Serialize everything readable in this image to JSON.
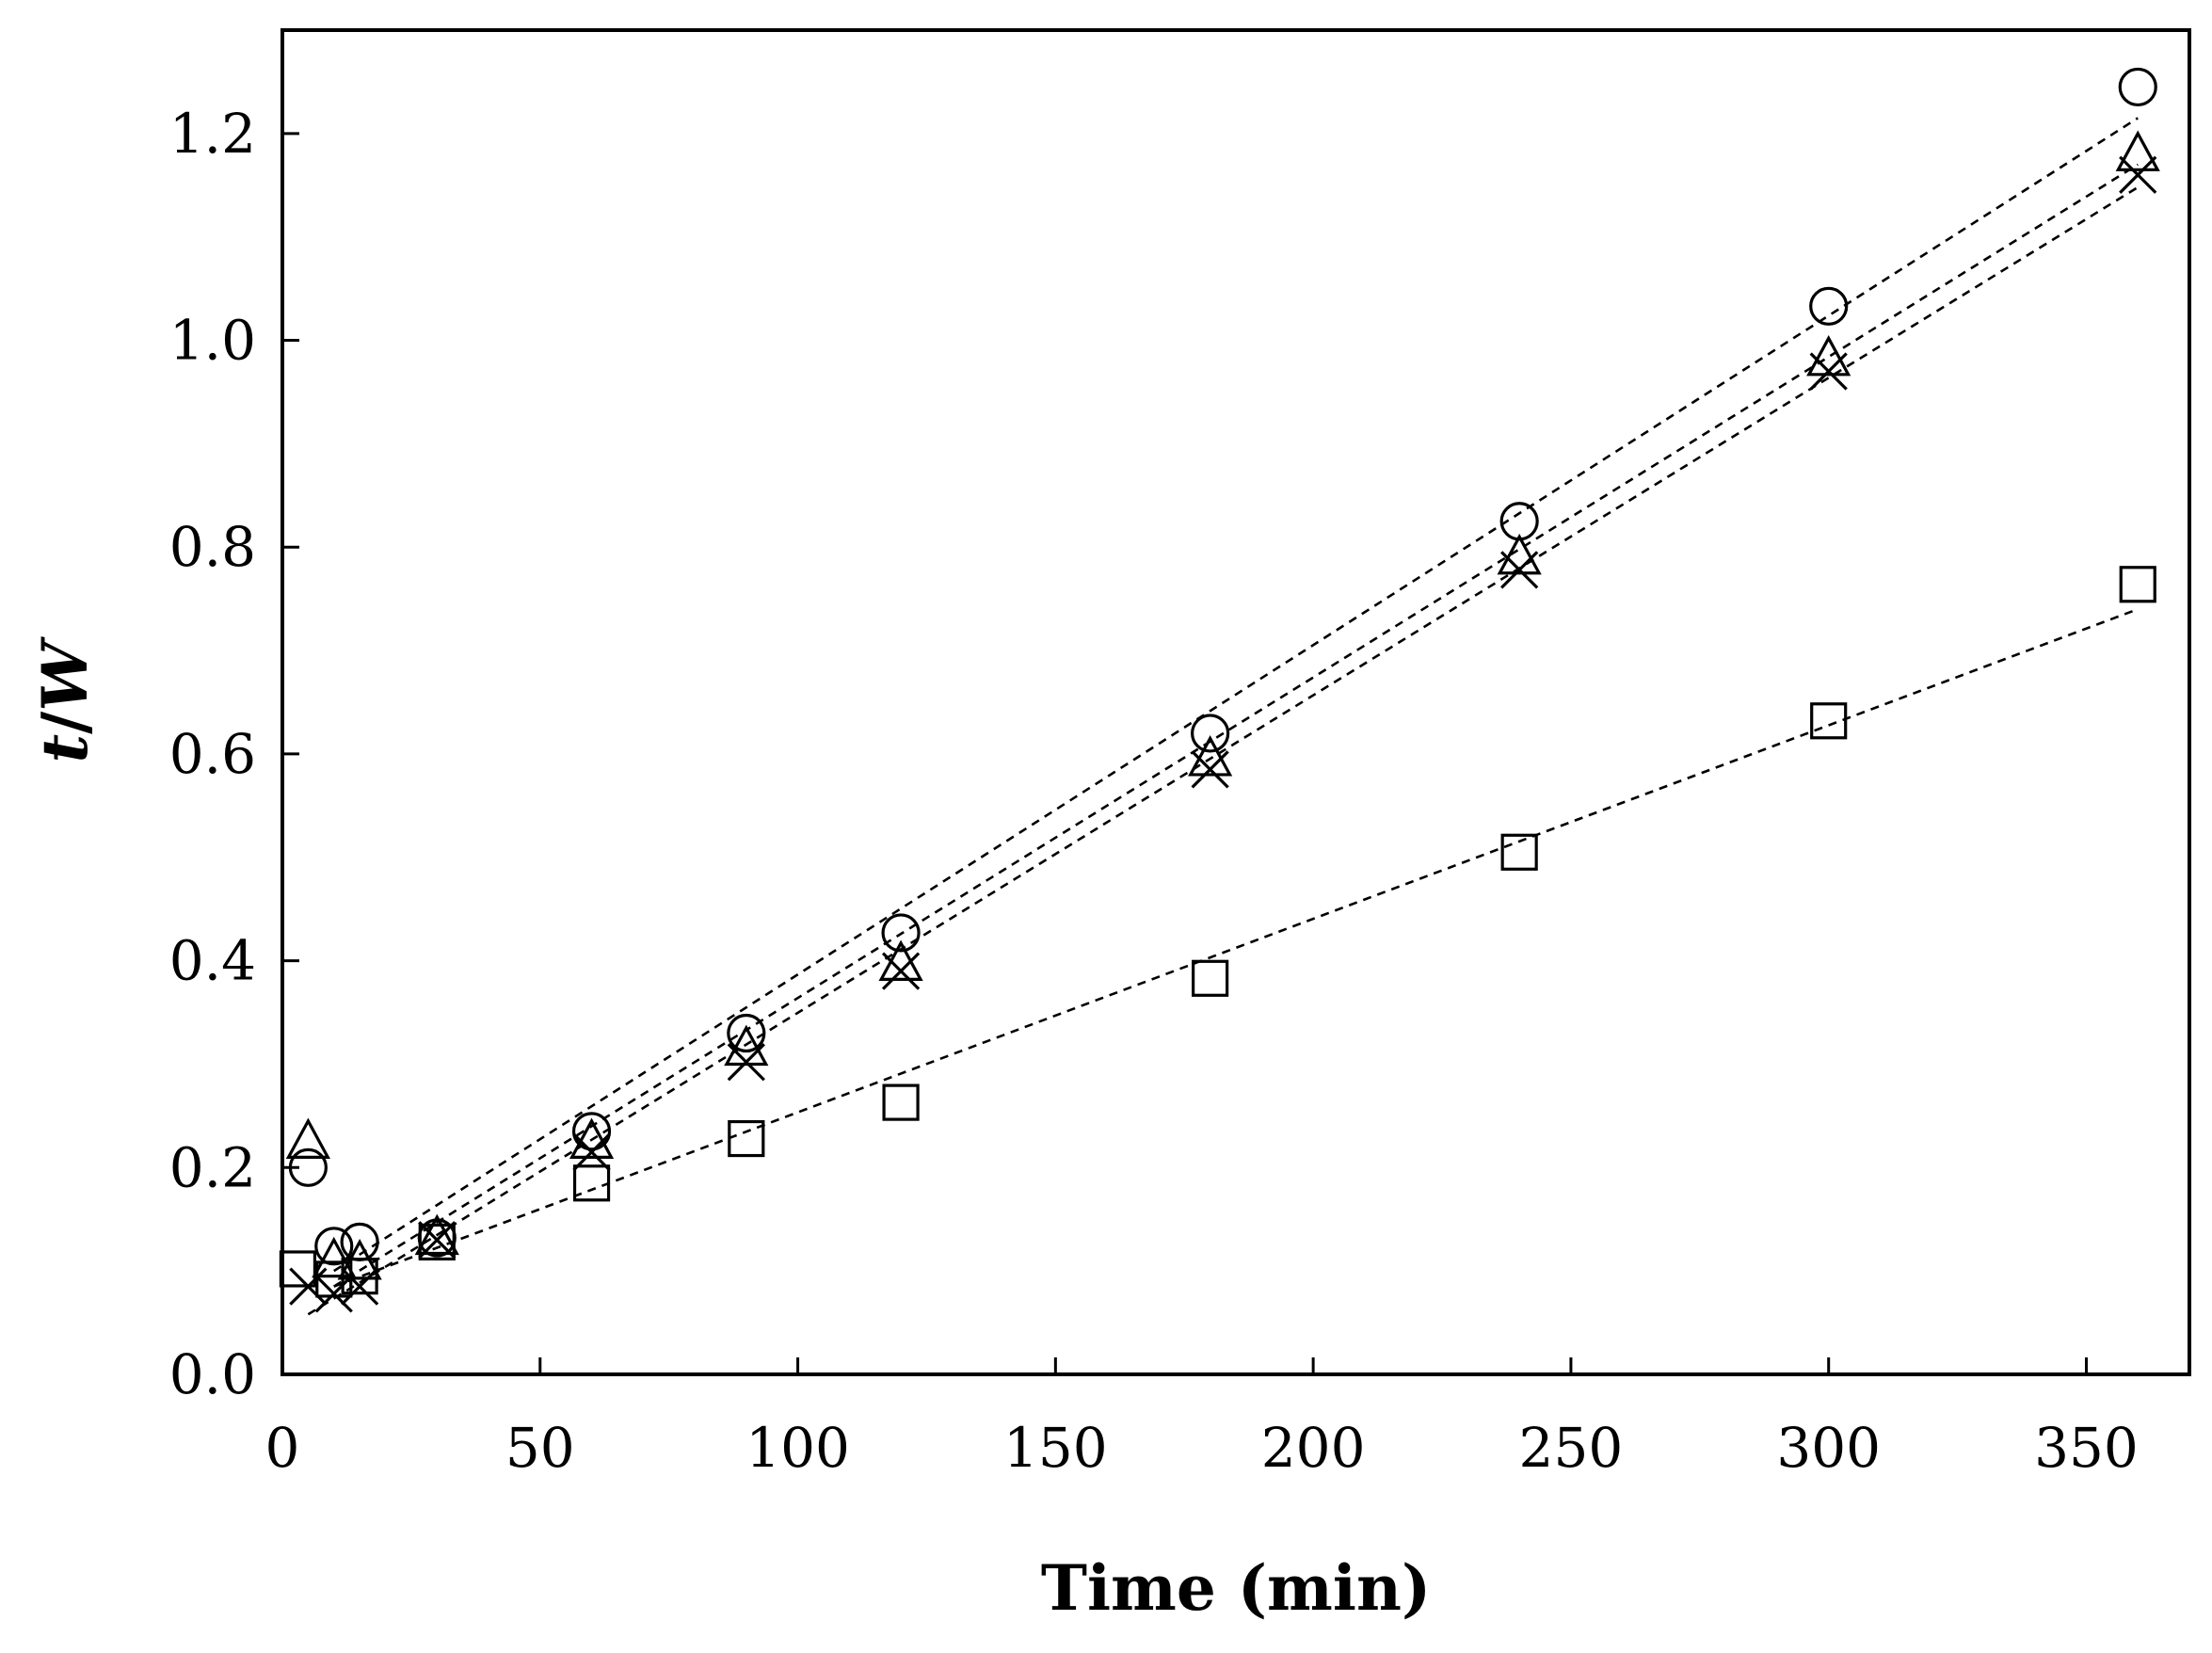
{
  "chart_data": {
    "type": "scatter",
    "title": "",
    "xlabel": "Time (min)",
    "ylabel_italic": "t",
    "ylabel_sep": "/",
    "ylabel_italic2": "W",
    "xlim": [
      0,
      370
    ],
    "ylim": [
      0,
      1.3
    ],
    "xticks": [
      0,
      50,
      100,
      150,
      200,
      250,
      300,
      350
    ],
    "yticks": [
      0.0,
      0.2,
      0.4,
      0.6,
      0.8,
      1.0,
      1.2
    ],
    "ytick_labels": [
      "0.0",
      "0.2",
      "0.4",
      "0.6",
      "0.8",
      "1.0",
      "1.2"
    ],
    "grid": false,
    "series": [
      {
        "name": "circle",
        "marker": "circle",
        "x": [
          5,
          10,
          15,
          30,
          60,
          90,
          120,
          180,
          240,
          300,
          360
        ],
        "y": [
          0.2,
          0.124,
          0.128,
          0.132,
          0.235,
          0.33,
          0.427,
          0.62,
          0.825,
          1.033,
          1.245
        ],
        "fit": {
          "x": [
            10,
            360
          ],
          "y": [
            0.1,
            1.215
          ]
        }
      },
      {
        "name": "triangle",
        "marker": "triangle",
        "x": [
          5,
          10,
          15,
          30,
          60,
          90,
          120,
          180,
          240,
          300,
          360
        ],
        "y": [
          0.225,
          0.11,
          0.108,
          0.132,
          0.225,
          0.315,
          0.397,
          0.595,
          0.79,
          0.982,
          1.18
        ],
        "fit": {
          "x": [
            10,
            360
          ],
          "y": [
            0.085,
            1.17
          ]
        }
      },
      {
        "name": "cross",
        "marker": "cross",
        "x": [
          5,
          10,
          15,
          30,
          60,
          90,
          120,
          180,
          240,
          300,
          360
        ],
        "y": [
          0.085,
          0.078,
          0.085,
          0.13,
          0.215,
          0.302,
          0.39,
          0.585,
          0.778,
          0.97,
          1.16
        ],
        "fit": {
          "x": [
            5,
            360
          ],
          "y": [
            0.058,
            1.148
          ]
        }
      },
      {
        "name": "square",
        "marker": "square",
        "x": [
          3,
          10,
          15,
          30,
          60,
          90,
          120,
          180,
          240,
          300,
          360
        ],
        "y": [
          0.102,
          0.092,
          0.095,
          0.128,
          0.185,
          0.228,
          0.263,
          0.383,
          0.505,
          0.632,
          0.764
        ],
        "fit": {
          "x": [
            10,
            360
          ],
          "y": [
            0.085,
            0.74
          ]
        }
      }
    ]
  }
}
